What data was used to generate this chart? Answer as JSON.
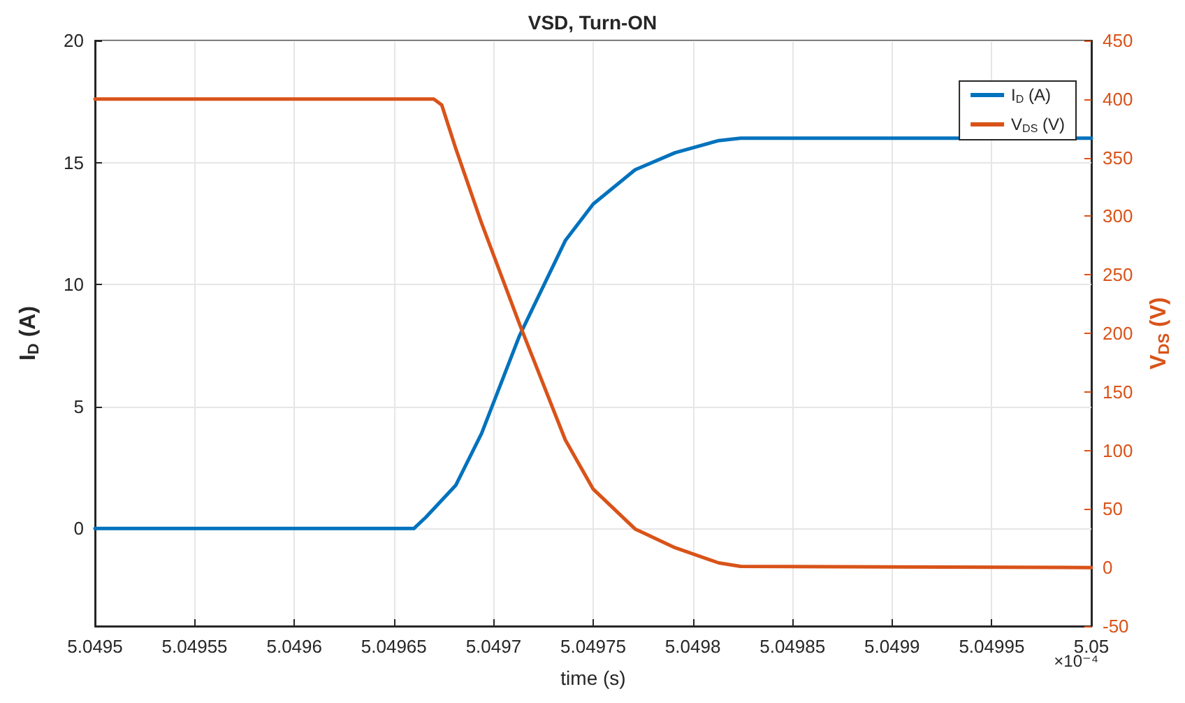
{
  "chart_data": {
    "type": "line",
    "title": "VSD, Turn-ON",
    "xlabel": "time (s)",
    "ylabel": "I$_{D}$ (A)",
    "y2label": "V$_{DS}$ (V)",
    "annotations": [
      "×10⁻⁴"
    ],
    "xlim": [
      5.0495,
      5.05
    ],
    "xticks": [
      5.0495,
      5.04955,
      5.0496,
      5.04965,
      5.0497,
      5.04975,
      5.0498,
      5.04985,
      5.0499,
      5.04995,
      5.05
    ],
    "ylim": [
      -4,
      20
    ],
    "yticks": [
      0,
      5,
      10,
      15,
      20
    ],
    "y2lim": [
      -50,
      450
    ],
    "y2ticks": [
      -50,
      0,
      50,
      100,
      150,
      200,
      250,
      300,
      350,
      400,
      450
    ],
    "grid": true,
    "legend": "top right",
    "marker": "none",
    "line_style": "solid",
    "series": [
      {
        "name": "I$_{D}$ (A)",
        "color": "#0072bd",
        "x": [
          5.0495,
          5.04966,
          5.049666,
          5.049681,
          5.049694,
          5.049713,
          5.049736,
          5.04975,
          5.049771,
          5.049791,
          5.049813,
          5.049824,
          5.05
        ],
        "values": [
          0,
          0,
          0.46,
          1.77,
          3.9,
          7.9,
          11.8,
          13.3,
          14.7,
          15.4,
          15.9,
          16,
          16
        ]
      },
      {
        "name": "V$_{DS}$ (V)",
        "color": "#d95319",
        "axis": "y2",
        "x": [
          5.0495,
          5.04967,
          5.049674,
          5.049681,
          5.049694,
          5.049713,
          5.049736,
          5.04975,
          5.049771,
          5.049791,
          5.049813,
          5.049824,
          5.05
        ],
        "values": [
          400,
          400,
          395,
          358,
          294,
          208,
          109,
          67,
          33,
          17,
          4,
          1,
          0
        ]
      }
    ]
  }
}
